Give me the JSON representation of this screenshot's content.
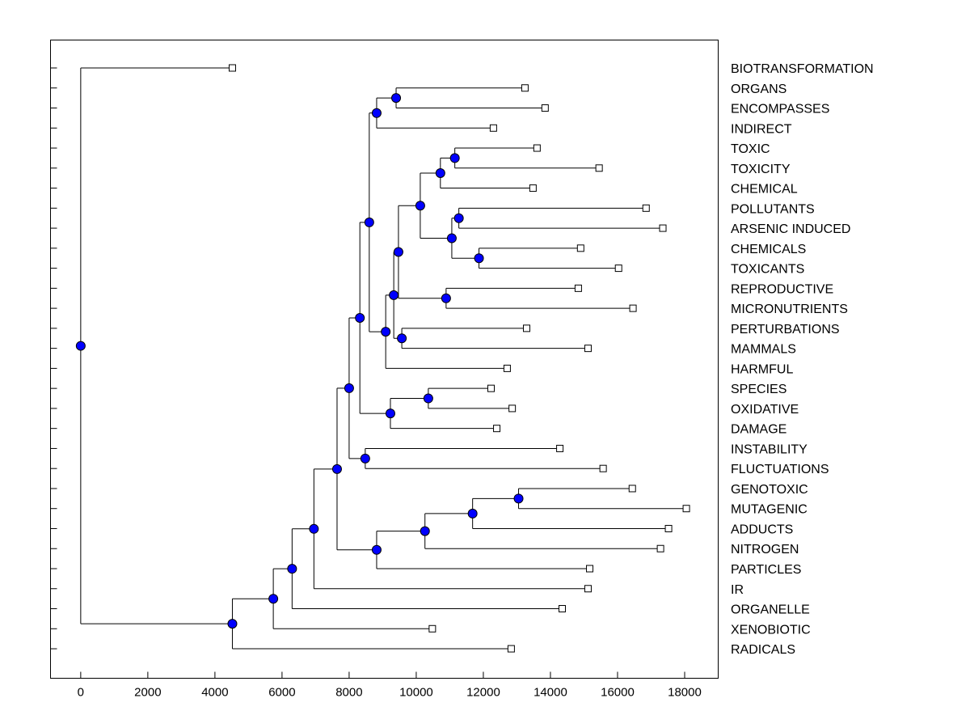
{
  "chart_data": {
    "type": "dendrogram",
    "orientation": "horizontal",
    "xlim": [
      -900,
      19000
    ],
    "x_ticks": [
      0,
      2000,
      4000,
      6000,
      8000,
      10000,
      12000,
      14000,
      16000,
      18000
    ],
    "node_color": "#0000ff",
    "leaf_marker": "open-square",
    "tree": {
      "height": 0,
      "children": [
        {
          "label": "BIOTRANSFORMATION",
          "height": 4520
        },
        {
          "height": 4520,
          "children": [
            {
              "height": 5740,
              "children": [
                {
                  "height": 6300,
                  "children": [
                    {
                      "height": 6950,
                      "children": [
                        {
                          "height": 7640,
                          "children": [
                            {
                              "height": 8000,
                              "children": [
                                {
                                  "height": 8320,
                                  "children": [
                                    {
                                      "height": 8600,
                                      "children": [
                                        {
                                          "height": 8820,
                                          "children": [
                                            {
                                              "height": 9400,
                                              "children": [
                                                {
                                                  "label": "ORGANS",
                                                  "height": 13240
                                                },
                                                {
                                                  "label": "ENCOMPASSES",
                                                  "height": 13840
                                                }
                                              ]
                                            },
                                            {
                                              "label": "INDIRECT",
                                              "height": 12300
                                            }
                                          ]
                                        },
                                        {
                                          "height": 9090,
                                          "children": [
                                            {
                                              "height": 9330,
                                              "children": [
                                                {
                                                  "height": 9470,
                                                  "children": [
                                                    {
                                                      "height": 10120,
                                                      "children": [
                                                        {
                                                          "height": 10720,
                                                          "children": [
                                                            {
                                                              "height": 11150,
                                                              "children": [
                                                                {
                                                                  "label": "TOXIC",
                                                                  "height": 13600
                                                                },
                                                                {
                                                                  "label": "TOXICITY",
                                                                  "height": 15450
                                                                }
                                                              ]
                                                            },
                                                            {
                                                              "label": "CHEMICAL",
                                                              "height": 13480
                                                            }
                                                          ]
                                                        },
                                                        {
                                                          "height": 11060,
                                                          "children": [
                                                            {
                                                              "height": 11270,
                                                              "children": [
                                                                {
                                                                  "label": "POLLUTANTS",
                                                                  "height": 16850
                                                                },
                                                                {
                                                                  "label": "ARSENIC INDUCED",
                                                                  "height": 17350
                                                                }
                                                              ]
                                                            },
                                                            {
                                                              "height": 11870,
                                                              "children": [
                                                                {
                                                                  "label": "CHEMICALS",
                                                                  "height": 14900
                                                                },
                                                                {
                                                                  "label": "TOXICANTS",
                                                                  "height": 16030
                                                                }
                                                              ]
                                                            }
                                                          ]
                                                        }
                                                      ]
                                                    },
                                                    {
                                                      "height": 10890,
                                                      "children": [
                                                        {
                                                          "label": "REPRODUCTIVE",
                                                          "height": 14830
                                                        },
                                                        {
                                                          "label": "MICRONUTRIENTS",
                                                          "height": 16460
                                                        }
                                                      ]
                                                    }
                                                  ]
                                                },
                                                {
                                                  "height": 9570,
                                                  "children": [
                                                    {
                                                      "label": "PERTURBATIONS",
                                                      "height": 13290
                                                    },
                                                    {
                                                      "label": "MAMMALS",
                                                      "height": 15120
                                                    }
                                                  ]
                                                }
                                              ]
                                            },
                                            {
                                              "label": "HARMFUL",
                                              "height": 12710
                                            }
                                          ]
                                        }
                                      ]
                                    },
                                    {
                                      "height": 9230,
                                      "children": [
                                        {
                                          "height": 10360,
                                          "children": [
                                            {
                                              "label": "SPECIES",
                                              "height": 12230
                                            },
                                            {
                                              "label": "OXIDATIVE",
                                              "height": 12860
                                            }
                                          ]
                                        },
                                        {
                                          "label": "DAMAGE",
                                          "height": 12400
                                        }
                                      ]
                                    }
                                  ]
                                },
                                {
                                  "height": 8480,
                                  "children": [
                                    {
                                      "label": "INSTABILITY",
                                      "height": 14280
                                    },
                                    {
                                      "label": "FLUCTUATIONS",
                                      "height": 15570
                                    }
                                  ]
                                }
                              ]
                            },
                            {
                              "height": 8820,
                              "children": [
                                {
                                  "height": 10260,
                                  "children": [
                                    {
                                      "height": 11680,
                                      "children": [
                                        {
                                          "height": 13050,
                                          "children": [
                                            {
                                              "label": "GENOTOXIC",
                                              "height": 16440
                                            },
                                            {
                                              "label": "MUTAGENIC",
                                              "height": 18050
                                            }
                                          ]
                                        },
                                        {
                                          "label": "ADDUCTS",
                                          "height": 17520
                                        }
                                      ]
                                    },
                                    {
                                      "label": "NITROGEN",
                                      "height": 17280
                                    }
                                  ]
                                },
                                {
                                  "label": "PARTICLES",
                                  "height": 15170
                                }
                              ]
                            }
                          ]
                        },
                        {
                          "label": "IR",
                          "height": 15120
                        }
                      ]
                    },
                    {
                      "label": "ORGANELLE",
                      "height": 14350
                    }
                  ]
                },
                {
                  "label": "XENOBIOTIC",
                  "height": 10480
                }
              ]
            },
            {
              "label": "RADICALS",
              "height": 12830
            }
          ]
        }
      ]
    }
  }
}
